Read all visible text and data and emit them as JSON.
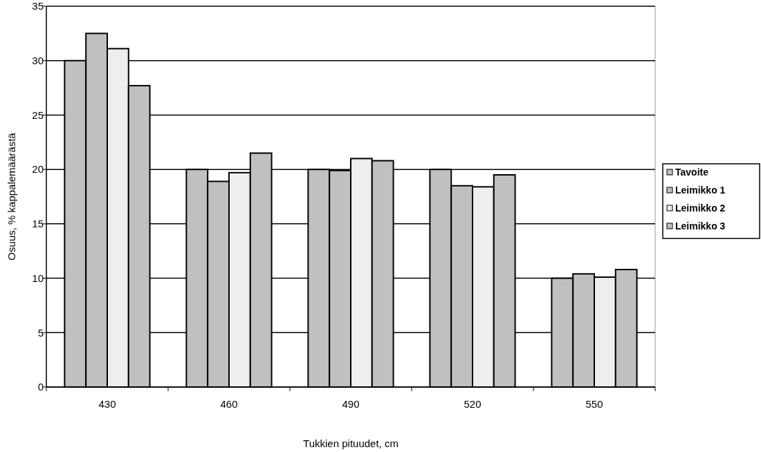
{
  "chart_data": {
    "type": "bar",
    "xlabel": "Tukkien pituudet, cm",
    "ylabel": "Osuus, % kappalemäärästä",
    "categories": [
      "430",
      "460",
      "490",
      "520",
      "550"
    ],
    "series": [
      {
        "name": "Tavoite",
        "color": "#c0c0c0",
        "values": [
          30,
          20,
          20,
          20,
          10
        ]
      },
      {
        "name": "Leimikko 1",
        "color": "#c0c0c0",
        "values": [
          32.5,
          18.9,
          19.9,
          18.5,
          10.4
        ]
      },
      {
        "name": "Leimikko 2",
        "color": "#eeeeee",
        "values": [
          31.1,
          19.7,
          21.0,
          18.4,
          10.1
        ]
      },
      {
        "name": "Leimikko 3",
        "color": "#c0c0c0",
        "values": [
          27.7,
          21.5,
          20.8,
          19.5,
          10.8
        ]
      }
    ],
    "ylim": [
      0,
      35
    ],
    "yticks": [
      0,
      5,
      10,
      15,
      20,
      25,
      30,
      35
    ],
    "grid": "y",
    "legend": "right"
  }
}
